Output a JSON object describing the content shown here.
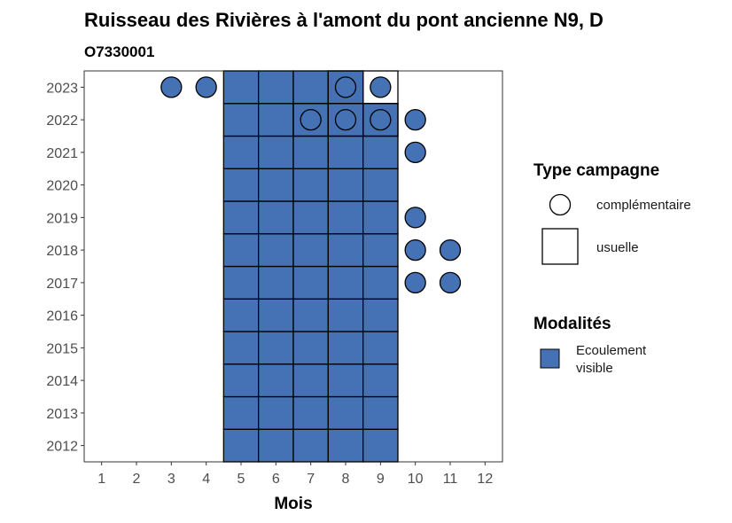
{
  "chart_data": {
    "type": "heatmap",
    "title": "Ruisseau des Rivières à l'amont du pont ancienne N9, D",
    "subtitle": "O7330001",
    "xlabel": "Mois",
    "ylabel": "",
    "x_ticks": [
      1,
      2,
      3,
      4,
      5,
      6,
      7,
      8,
      9,
      10,
      11,
      12
    ],
    "y_ticks": [
      2012,
      2013,
      2014,
      2015,
      2016,
      2017,
      2018,
      2019,
      2020,
      2021,
      2022,
      2023
    ],
    "xlim": [
      0.5,
      12.5
    ],
    "ylim": [
      2011.5,
      2023.5
    ],
    "usuelle": [
      {
        "year": 2012,
        "months": [
          5,
          6,
          7,
          8,
          9
        ]
      },
      {
        "year": 2013,
        "months": [
          5,
          6,
          7,
          8,
          9
        ]
      },
      {
        "year": 2014,
        "months": [
          5,
          6,
          7,
          8,
          9
        ]
      },
      {
        "year": 2015,
        "months": [
          5,
          6,
          7,
          8,
          9
        ]
      },
      {
        "year": 2016,
        "months": [
          5,
          6,
          7,
          8,
          9
        ]
      },
      {
        "year": 2017,
        "months": [
          5,
          6,
          7,
          8,
          9
        ]
      },
      {
        "year": 2018,
        "months": [
          5,
          6,
          7,
          8,
          9
        ]
      },
      {
        "year": 2019,
        "months": [
          5,
          6,
          7,
          8,
          9
        ]
      },
      {
        "year": 2020,
        "months": [
          5,
          6,
          7,
          8,
          9
        ]
      },
      {
        "year": 2021,
        "months": [
          5,
          6,
          7,
          8,
          9
        ]
      },
      {
        "year": 2022,
        "months": [
          5,
          6,
          7,
          8,
          9
        ]
      },
      {
        "year": 2023,
        "months": [
          5,
          6,
          7,
          8
        ]
      }
    ],
    "complementaire": [
      {
        "year": 2023,
        "months": [
          3,
          4,
          8,
          9
        ]
      },
      {
        "year": 2022,
        "months": [
          7,
          8,
          9,
          10
        ]
      },
      {
        "year": 2021,
        "months": [
          10
        ]
      },
      {
        "year": 2019,
        "months": [
          10
        ]
      },
      {
        "year": 2018,
        "months": [
          10,
          11
        ]
      },
      {
        "year": 2017,
        "months": [
          10,
          11
        ]
      }
    ],
    "overlay_outline_only": [
      {
        "year": 2023,
        "month": 8
      },
      {
        "year": 2023,
        "month": 9
      },
      {
        "year": 2022,
        "month": 7
      },
      {
        "year": 2022,
        "month": 8
      },
      {
        "year": 2022,
        "month": 9
      }
    ],
    "legend": {
      "placement": "right",
      "type_title": "Type campagne",
      "type_items": [
        "complémentaire",
        "usuelle"
      ],
      "modalite_title": "Modalités",
      "modalite_items": [
        {
          "label_line1": "Ecoulement",
          "label_line2": "visible",
          "color": "#4472b4"
        }
      ]
    },
    "colors": {
      "fill": "#4472b4",
      "outline": "#000000",
      "panel_border": "#333333"
    },
    "grid": false
  }
}
